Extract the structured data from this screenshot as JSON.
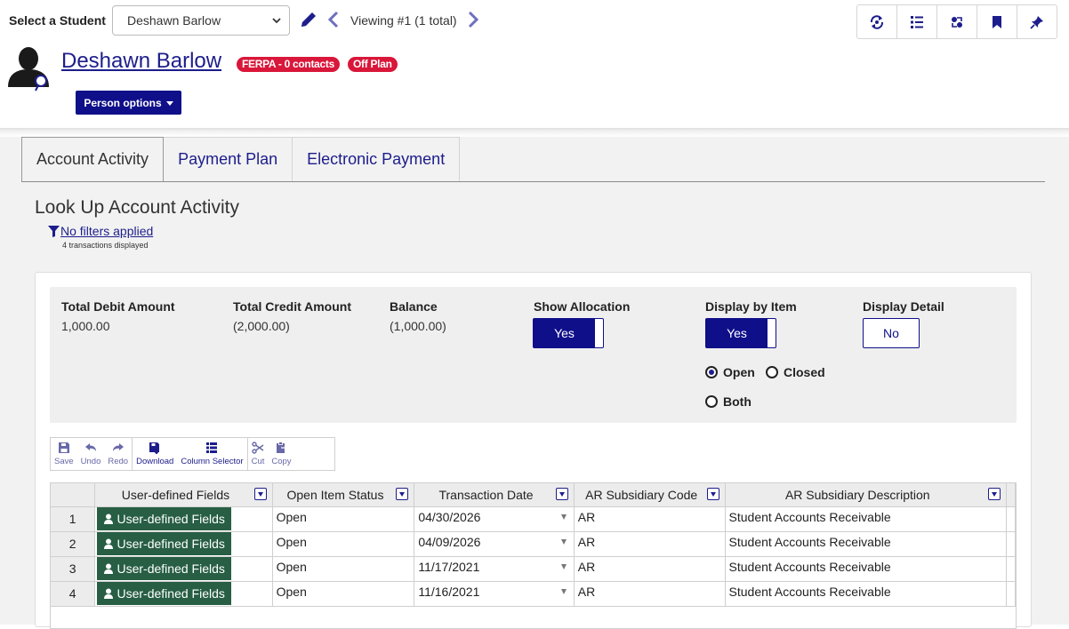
{
  "header": {
    "select_label": "Select a Student",
    "selected_student": "Deshawn Barlow",
    "viewing_text": "Viewing #1 (1 total)",
    "person_name": "Deshawn Barlow",
    "badges": {
      "ferpa": "FERPA - 0 contacts",
      "off_plan": "Off Plan"
    },
    "person_options_label": "Person options",
    "toolbar_icons": [
      "sync-icon",
      "list-icon",
      "relationship-icon",
      "bookmark-icon",
      "pin-icon"
    ]
  },
  "tabs": [
    {
      "label": "Account Activity",
      "active": true
    },
    {
      "label": "Payment Plan",
      "active": false
    },
    {
      "label": "Electronic Payment",
      "active": false
    }
  ],
  "page": {
    "title": "Look Up Account Activity",
    "filter_link": "No filters applied",
    "transaction_count": "4 transactions displayed"
  },
  "summary": {
    "total_debit_label": "Total Debit Amount",
    "total_debit_value": "1,000.00",
    "total_credit_label": "Total Credit Amount",
    "total_credit_value": "(2,000.00)",
    "balance_label": "Balance",
    "balance_value": "(1,000.00)",
    "show_allocation_label": "Show Allocation",
    "show_allocation_value": "Yes",
    "display_by_item_label": "Display by Item",
    "display_by_item_value": "Yes",
    "display_detail_label": "Display Detail",
    "display_detail_value": "No",
    "status_options": [
      "Open",
      "Closed",
      "Both"
    ],
    "status_selected": "Open"
  },
  "grid_toolbar": {
    "save": "Save",
    "undo": "Undo",
    "redo": "Redo",
    "download": "Download",
    "column_selector": "Column Selector",
    "cut": "Cut",
    "copy": "Copy"
  },
  "grid": {
    "columns": [
      "User-defined Fields",
      "Open Item Status",
      "Transaction Date",
      "AR Subsidiary Code",
      "AR Subsidiary Description"
    ],
    "rows": [
      {
        "num": "1",
        "udf": "User-defined Fields",
        "status": "Open",
        "date": "04/30/2026",
        "code": "AR",
        "desc": "Student Accounts Receivable"
      },
      {
        "num": "2",
        "udf": "User-defined Fields",
        "status": "Open",
        "date": "04/09/2026",
        "code": "AR",
        "desc": "Student Accounts Receivable"
      },
      {
        "num": "3",
        "udf": "User-defined Fields",
        "status": "Open",
        "date": "11/17/2021",
        "code": "AR",
        "desc": "Student Accounts Receivable"
      },
      {
        "num": "4",
        "udf": "User-defined Fields",
        "status": "Open",
        "date": "11/16/2021",
        "code": "AR",
        "desc": "Student Accounts Receivable"
      }
    ]
  },
  "colors": {
    "primary": "#0f0f8a",
    "link": "#1d1d8c",
    "badge": "#d9173a",
    "udf_button": "#275e44"
  }
}
